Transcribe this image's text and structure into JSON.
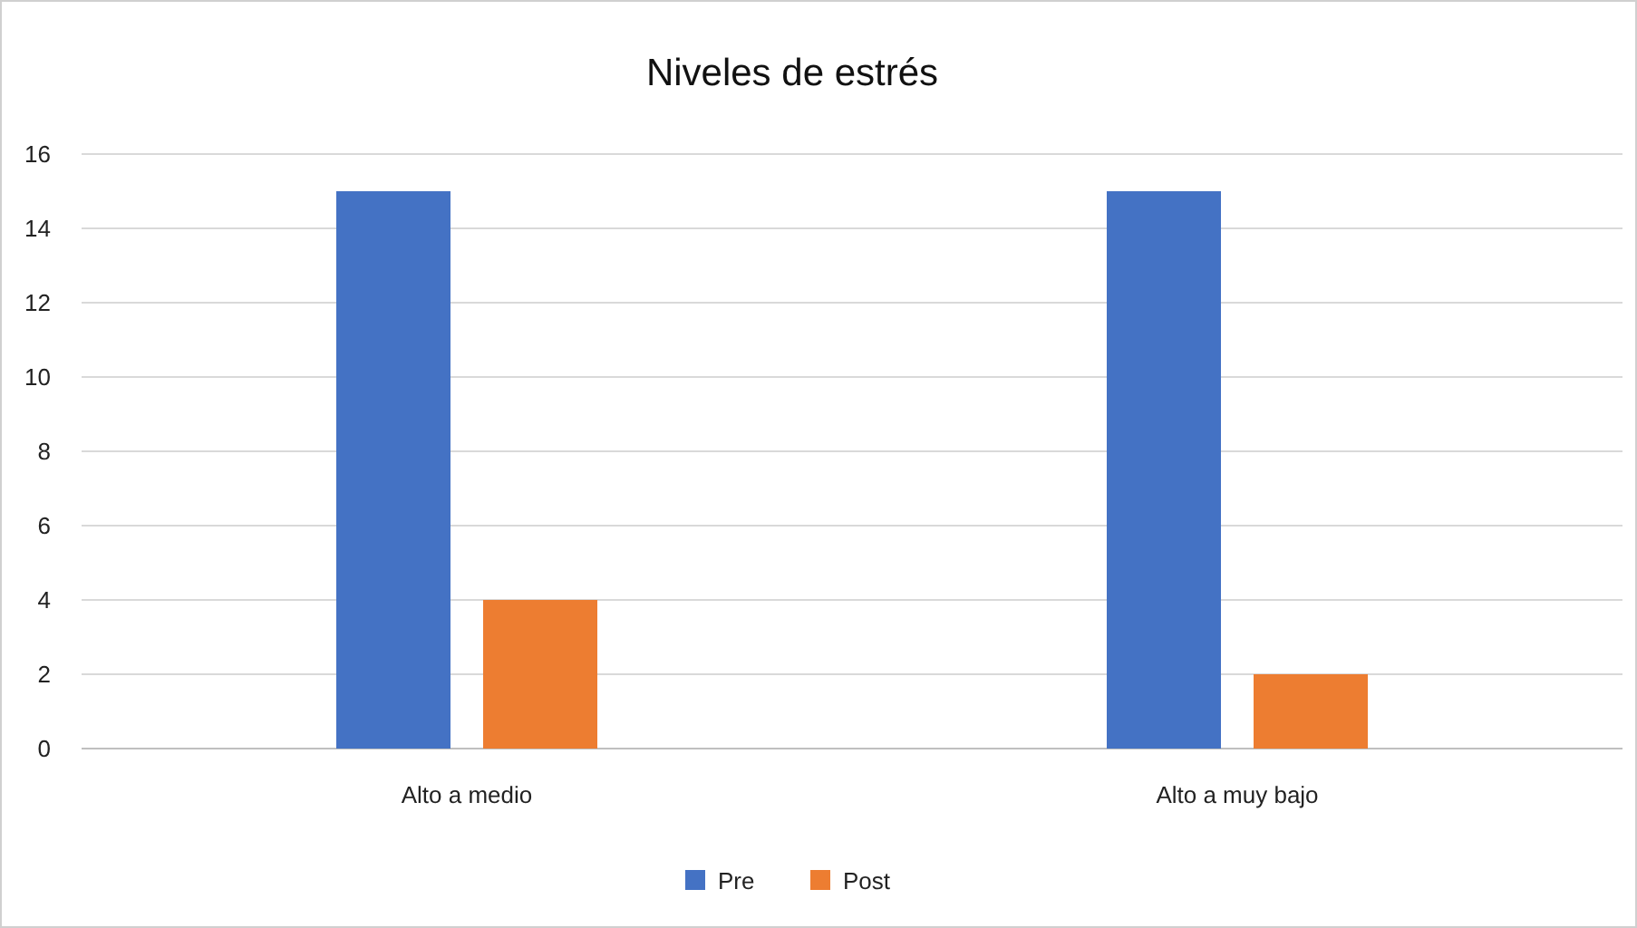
{
  "chart_data": {
    "type": "bar",
    "title": "Niveles de estrés",
    "categories": [
      "Alto a medio",
      "Alto a muy bajo"
    ],
    "series": [
      {
        "name": "Pre",
        "color": "#4472c4",
        "values": [
          15,
          15
        ]
      },
      {
        "name": "Post",
        "color": "#ed7d31",
        "values": [
          4,
          2
        ]
      }
    ],
    "ylim": [
      0,
      16
    ],
    "yticks": [
      0,
      2,
      4,
      6,
      8,
      10,
      12,
      14,
      16
    ],
    "grid": "y",
    "legend": "bottom"
  }
}
